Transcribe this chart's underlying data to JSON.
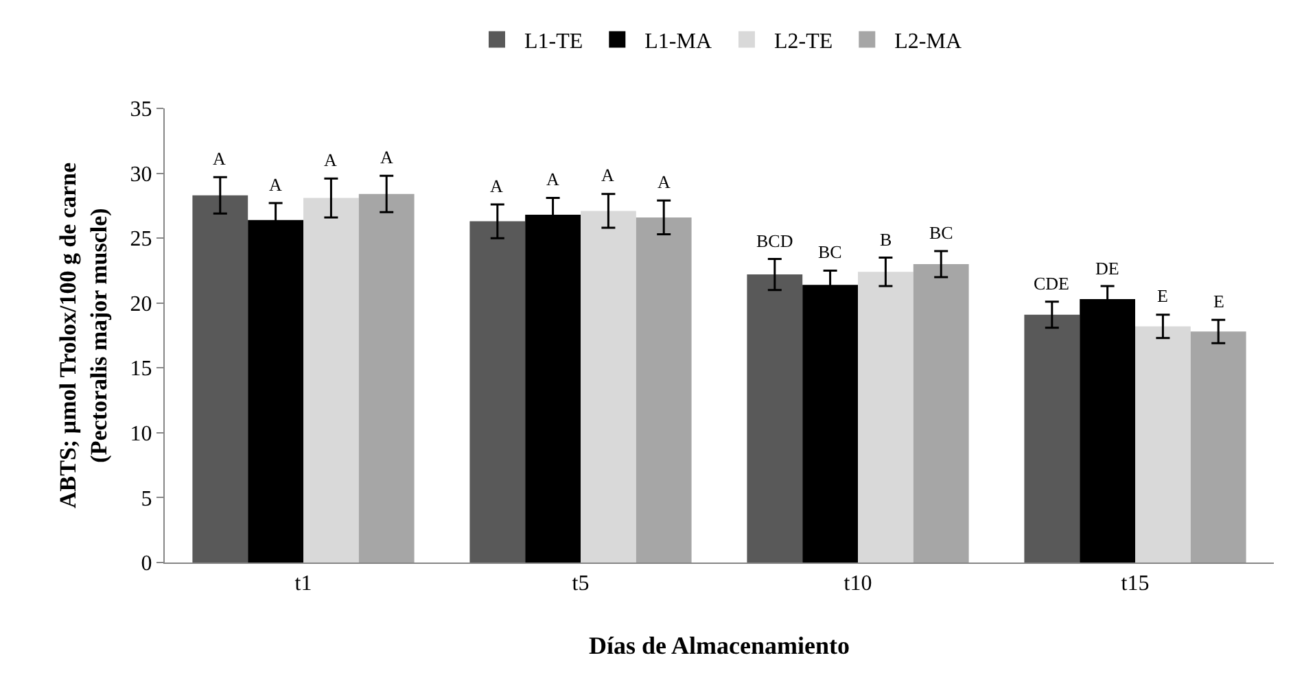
{
  "chart_data": {
    "type": "bar",
    "xlabel": "Días de Almacenamiento",
    "ylabel": "ABTS; µmol Trolox/100 g de carne\n(Pectoralis major muscle)",
    "categories": [
      "t1",
      "t5",
      "t10",
      "t15"
    ],
    "series": [
      {
        "name": "L1-TE",
        "color": "#595959",
        "values": [
          28.3,
          26.3,
          22.2,
          19.1
        ],
        "errors": [
          1.4,
          1.3,
          1.2,
          1.0
        ],
        "value_labels": [
          "A",
          "A",
          "BCD",
          "CDE"
        ]
      },
      {
        "name": "L1-MA",
        "color": "#000000",
        "values": [
          26.4,
          26.8,
          21.4,
          20.3
        ],
        "errors": [
          1.3,
          1.3,
          1.1,
          1.0
        ],
        "value_labels": [
          "A",
          "A",
          "BC",
          "DE"
        ]
      },
      {
        "name": "L2-TE",
        "color": "#d9d9d9",
        "values": [
          28.1,
          27.1,
          22.4,
          18.2
        ],
        "errors": [
          1.5,
          1.3,
          1.1,
          0.9
        ],
        "value_labels": [
          "A",
          "A",
          "B",
          "E"
        ]
      },
      {
        "name": "L2-MA",
        "color": "#a6a6a6",
        "values": [
          28.4,
          26.6,
          23.0,
          17.8
        ],
        "errors": [
          1.4,
          1.3,
          1.0,
          0.9
        ],
        "value_labels": [
          "A",
          "A",
          "BC",
          "E"
        ]
      }
    ],
    "ylim": [
      0,
      35
    ],
    "yticks": [
      0,
      5,
      10,
      15,
      20,
      25,
      30,
      35
    ],
    "grid": false,
    "legend": "top"
  }
}
